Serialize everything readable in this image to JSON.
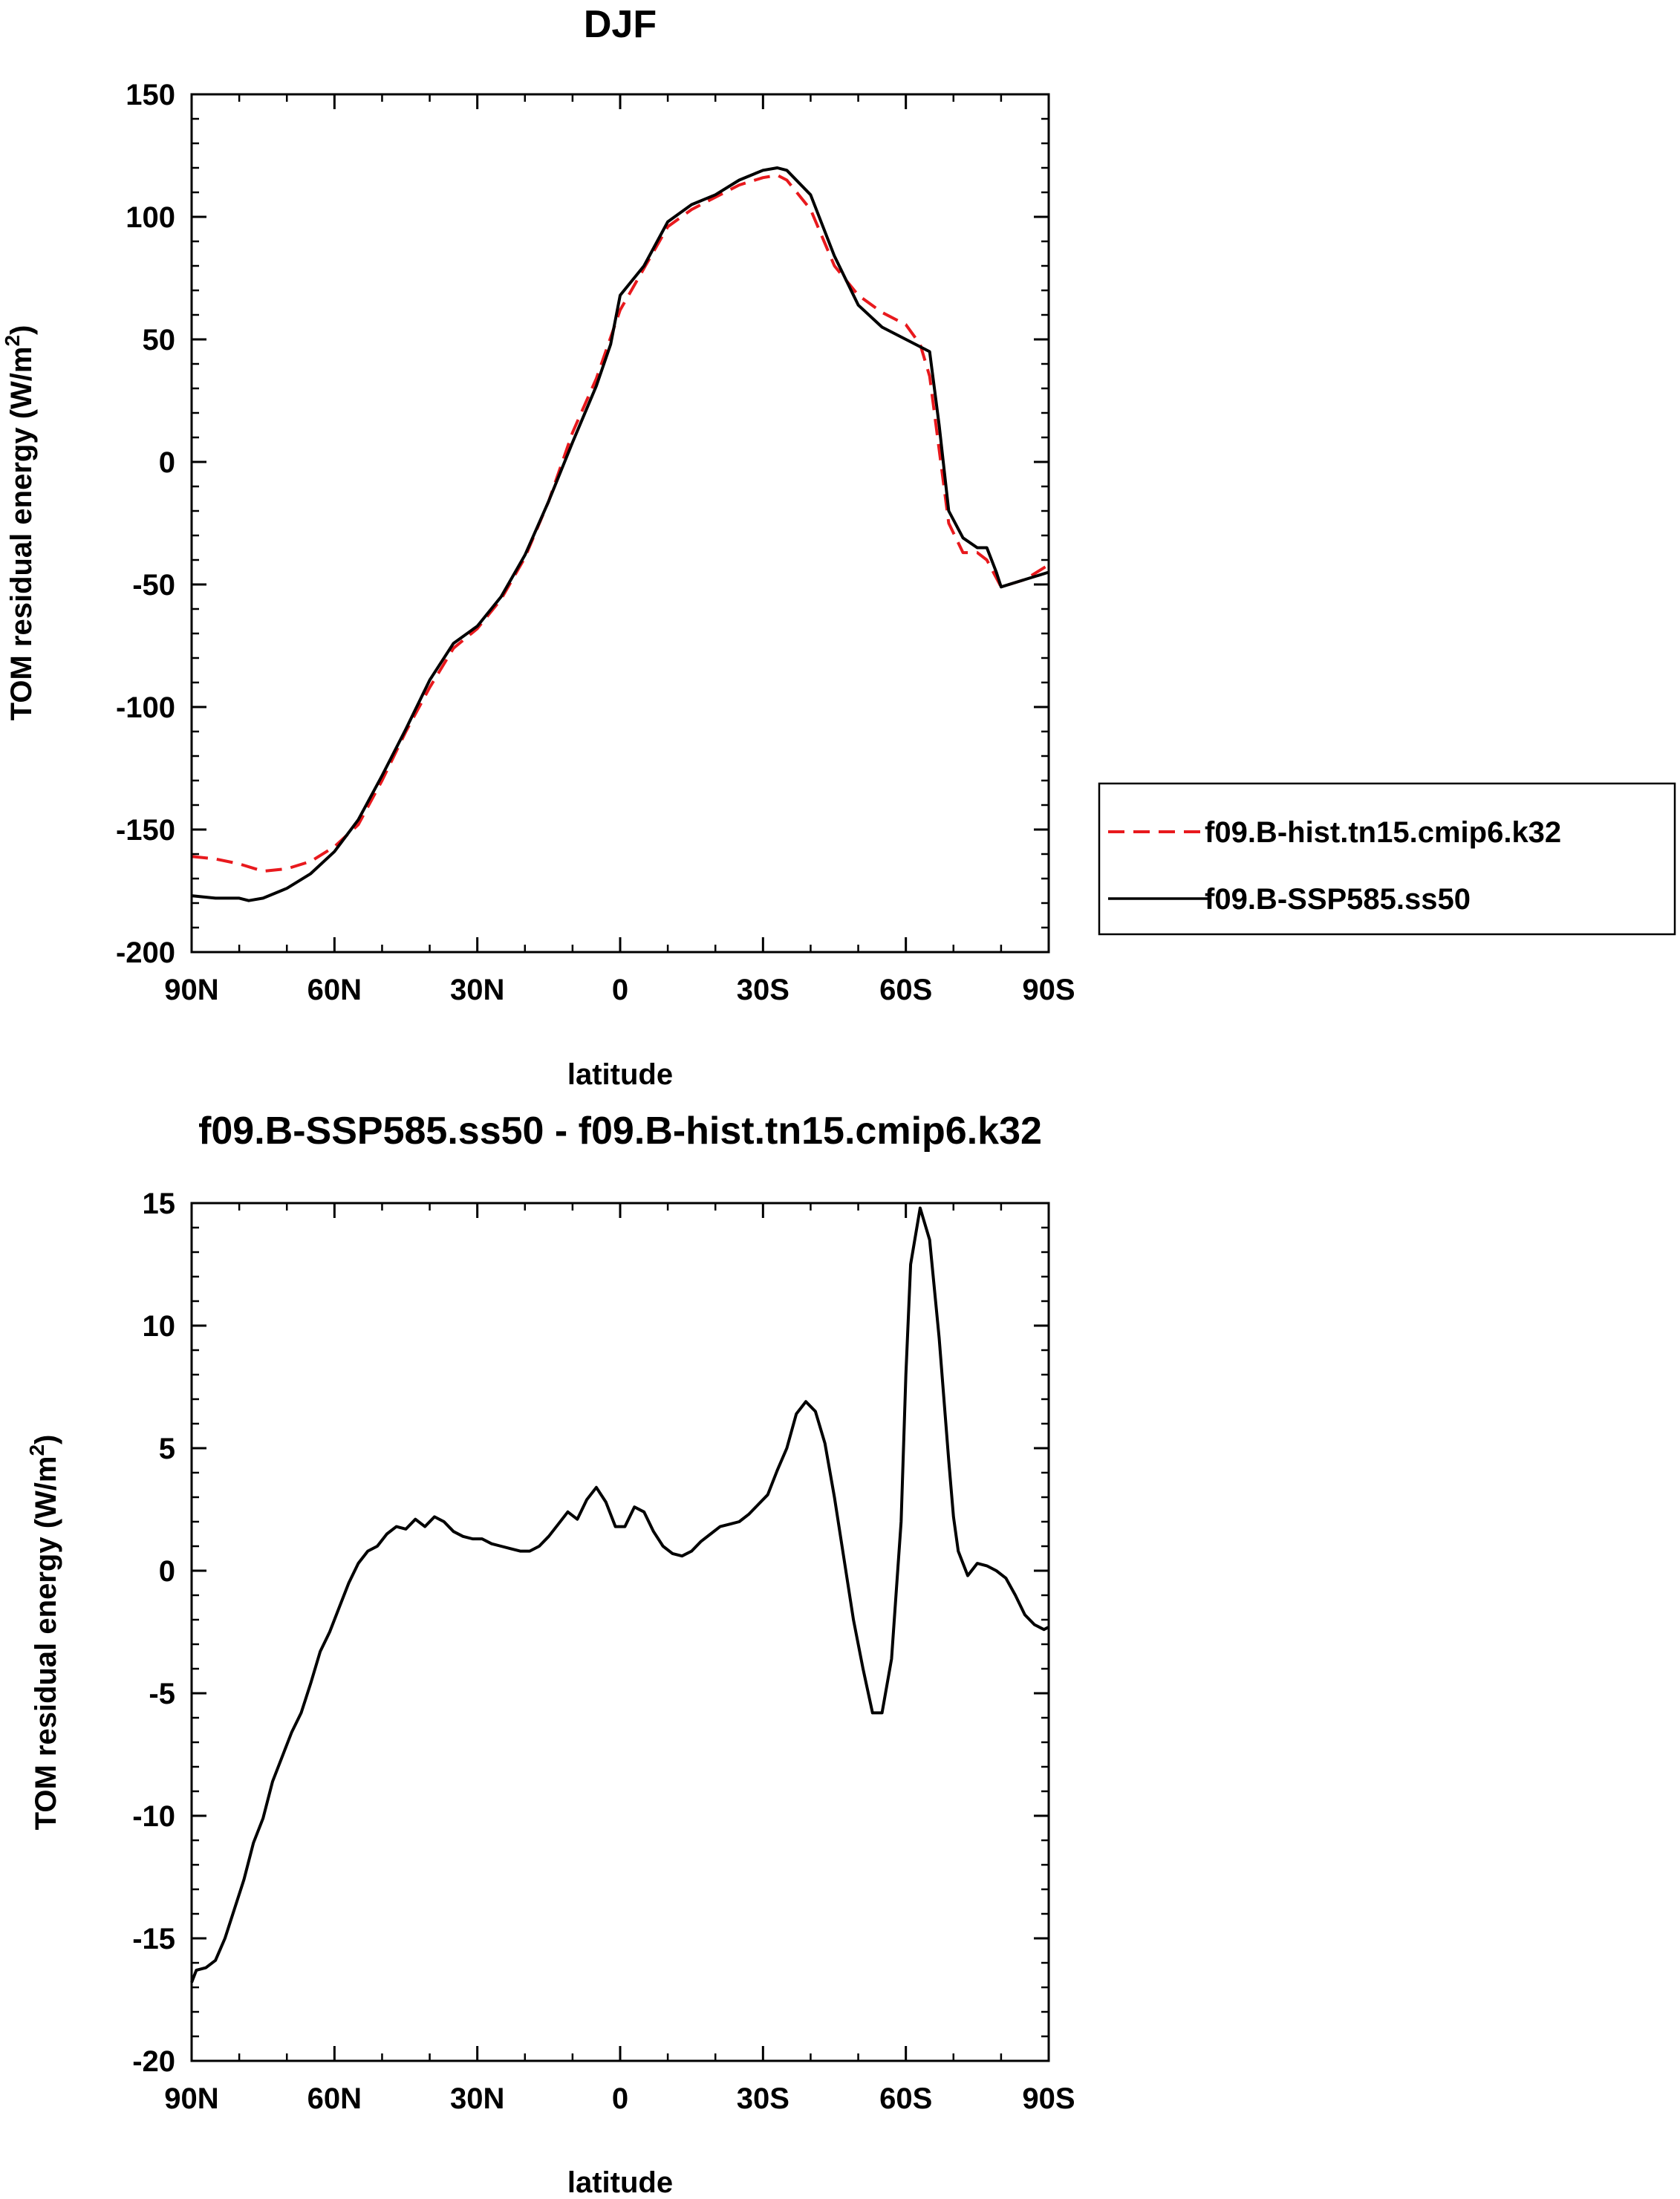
{
  "chart_data": [
    {
      "type": "line",
      "title": "DJF",
      "xlabel": "latitude",
      "ylabel": "TOM residual energy (W/m",
      "ylabel_sup": "2",
      "ylabel_tail": ")",
      "xlim": [
        90,
        -90
      ],
      "ylim": [
        -200,
        150
      ],
      "xticks": [
        90,
        60,
        30,
        0,
        -30,
        -60,
        -90
      ],
      "xtick_labels": [
        "90N",
        "60N",
        "30N",
        "0",
        "30S",
        "60S",
        "90S"
      ],
      "yticks": [
        -200,
        -150,
        -100,
        -50,
        0,
        50,
        100,
        150
      ],
      "ytick_labels": [
        "-200",
        "-150",
        "-100",
        "-50",
        "0",
        "50",
        "100",
        "150"
      ],
      "legend": "right",
      "series": [
        {
          "name": "f09.B-hist.tn15.cmip6.k32",
          "color": "#e8191d",
          "dash": "dashed",
          "x": [
            90,
            85,
            80,
            75,
            70,
            65,
            60,
            55,
            50,
            45,
            40,
            35,
            30,
            25,
            20,
            15,
            10,
            5,
            0,
            -5,
            -10,
            -15,
            -20,
            -25,
            -30,
            -33,
            -35,
            -40,
            -45,
            -50,
            -55,
            -60,
            -63,
            -65,
            -67,
            -69,
            -72,
            -75,
            -77,
            -80,
            -85,
            -90
          ],
          "y": [
            -161,
            -162,
            -164,
            -167,
            -166,
            -163,
            -157,
            -148,
            -130,
            -110,
            -92,
            -76,
            -68,
            -56,
            -39,
            -16,
            12,
            34,
            62,
            79,
            96,
            103,
            108,
            113,
            116,
            117,
            115,
            103,
            80,
            68,
            61,
            56,
            48,
            35,
            5,
            -25,
            -37,
            -37,
            -40,
            -51,
            -48,
            -42
          ]
        },
        {
          "name": "f09.B-SSP585.ss50",
          "color": "#000000",
          "dash": "solid",
          "x": [
            90,
            85,
            80,
            78,
            75,
            70,
            65,
            60,
            55,
            50,
            45,
            40,
            35,
            30,
            25,
            20,
            15,
            10,
            5,
            2,
            0,
            -5,
            -10,
            -15,
            -20,
            -25,
            -30,
            -33,
            -35,
            -40,
            -45,
            -50,
            -55,
            -60,
            -63,
            -65,
            -67,
            -69,
            -72,
            -75,
            -77,
            -79,
            -80,
            -85,
            -90
          ],
          "y": [
            -177,
            -178,
            -178,
            -179,
            -178,
            -174,
            -168,
            -159,
            -146,
            -128,
            -109,
            -89,
            -74,
            -67,
            -55,
            -38,
            -16,
            8,
            31,
            48,
            68,
            80,
            98,
            105,
            109,
            115,
            119,
            120,
            119,
            109,
            84,
            64,
            55,
            50,
            47,
            45,
            15,
            -20,
            -31,
            -35,
            -35,
            -45,
            -51,
            -48,
            -45
          ]
        }
      ]
    },
    {
      "type": "line",
      "title": "f09.B-SSP585.ss50 - f09.B-hist.tn15.cmip6.k32",
      "xlabel": "latitude",
      "ylabel": "TOM residual energy (W/m",
      "ylabel_sup": "2",
      "ylabel_tail": ")",
      "xlim": [
        90,
        -90
      ],
      "ylim": [
        -20,
        15
      ],
      "xticks": [
        90,
        60,
        30,
        0,
        -30,
        -60,
        -90
      ],
      "xtick_labels": [
        "90N",
        "60N",
        "30N",
        "0",
        "30S",
        "60S",
        "90S"
      ],
      "yticks": [
        -20,
        -15,
        -10,
        -5,
        0,
        5,
        10,
        15
      ],
      "ytick_labels": [
        "-20",
        "-15",
        "-10",
        "-5",
        "0",
        "5",
        "10",
        "15"
      ],
      "series": [
        {
          "color": "#000000",
          "dash": "solid",
          "x": [
            90,
            89,
            87,
            85,
            83,
            81,
            79,
            77,
            75,
            73,
            71,
            69,
            67,
            65,
            63,
            61,
            59,
            57,
            55,
            53,
            51,
            49,
            47,
            45,
            43,
            41,
            39,
            37,
            35,
            33,
            31,
            29,
            27,
            25,
            23,
            21,
            19,
            17,
            15,
            13,
            11,
            9,
            7,
            5,
            3,
            1,
            -1,
            -3,
            -5,
            -7,
            -9,
            -11,
            -13,
            -15,
            -17,
            -19,
            -21,
            -23,
            -25,
            -27,
            -29,
            -31,
            -33,
            -35,
            -37,
            -39,
            -41,
            -43,
            -45,
            -47,
            -49,
            -51,
            -53,
            -55,
            -57,
            -59,
            -60,
            -61,
            -63,
            -65,
            -67,
            -69,
            -70,
            -71,
            -73,
            -75,
            -77,
            -79,
            -81,
            -83,
            -85,
            -87,
            -89,
            -90
          ],
          "y": [
            -16.8,
            -16.3,
            -16.2,
            -15.9,
            -15.0,
            -13.8,
            -12.6,
            -11.1,
            -10.1,
            -8.6,
            -7.6,
            -6.6,
            -5.8,
            -4.6,
            -3.3,
            -2.5,
            -1.5,
            -0.5,
            0.3,
            0.8,
            1.0,
            1.5,
            1.8,
            1.7,
            2.1,
            1.8,
            2.2,
            2.0,
            1.6,
            1.4,
            1.3,
            1.3,
            1.1,
            1.0,
            0.9,
            0.8,
            0.8,
            1.0,
            1.4,
            1.9,
            2.4,
            2.1,
            2.9,
            3.4,
            2.8,
            1.8,
            1.8,
            2.6,
            2.4,
            1.6,
            1.0,
            0.7,
            0.6,
            0.8,
            1.2,
            1.5,
            1.8,
            1.9,
            2.0,
            2.3,
            2.7,
            3.1,
            4.1,
            5.0,
            6.4,
            6.9,
            6.5,
            5.2,
            3.0,
            0.5,
            -2.0,
            -4.0,
            -5.8,
            -5.8,
            -3.6,
            2.0,
            8.0,
            12.5,
            14.8,
            13.5,
            9.5,
            4.5,
            2.2,
            0.8,
            -0.2,
            0.3,
            0.2,
            0.0,
            -0.3,
            -1.0,
            -1.8,
            -2.2,
            -2.4,
            -2.3
          ]
        }
      ]
    }
  ]
}
